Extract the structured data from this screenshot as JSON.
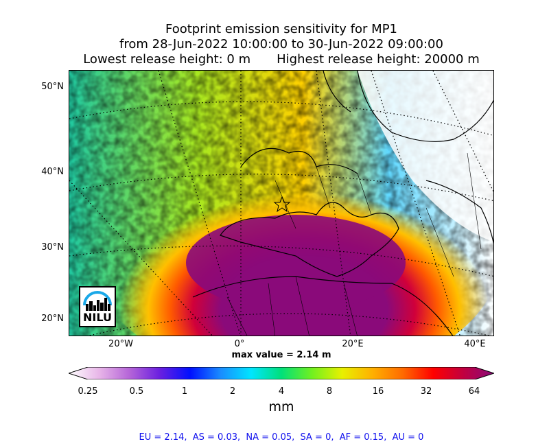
{
  "title": {
    "line1": "Footprint emission sensitivity for MP1",
    "line2": "from 28-Jun-2022 10:00:00 to 30-Jun-2022 09:00:00",
    "line3_left": "Lowest release height: 0 m",
    "line3_right": "Highest release height: 20000 m"
  },
  "map": {
    "lat_labels": [
      "50°N",
      "40°N",
      "30°N",
      "20°N"
    ],
    "lon_labels": [
      "20°W",
      "0°",
      "20°E",
      "40°E"
    ],
    "logo_text": "NILU"
  },
  "max_value_label": "max value = 2.14 m",
  "colorbar": {
    "tick_labels": [
      "0.25",
      "0.5",
      "1",
      "2",
      "4",
      "8",
      "16",
      "32",
      "64"
    ],
    "unit": "mm",
    "colors": [
      "#ffffff",
      "#e8b6e8",
      "#b565d8",
      "#6a1fe0",
      "#0010ff",
      "#1a8cff",
      "#00e5ff",
      "#00e07a",
      "#70f020",
      "#e8f000",
      "#ffb000",
      "#ff6a00",
      "#ff0000",
      "#c00040",
      "#8a0a7a"
    ]
  },
  "footer": "EU = 2.14,  AS = 0.03,  NA = 0.05,  SA = 0,  AF = 0.15,  AU = 0"
}
